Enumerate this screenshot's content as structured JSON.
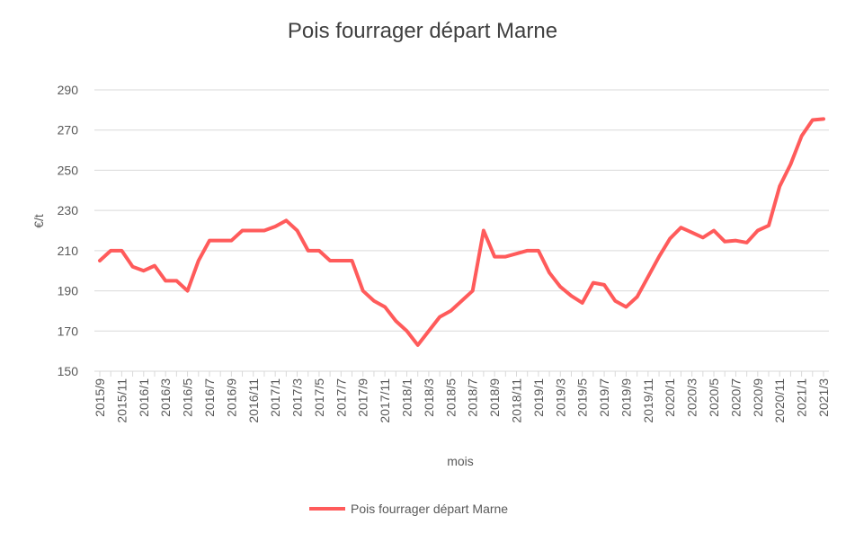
{
  "chart_data": {
    "type": "line",
    "title": "Pois fourrager départ Marne",
    "x_label": "mois",
    "y_label": "€/t",
    "categories": [
      "2015/9",
      null,
      "2015/11",
      null,
      "2016/1",
      null,
      "2016/3",
      null,
      "2016/5",
      null,
      "2016/7",
      null,
      "2016/9",
      null,
      "2016/11",
      null,
      "2017/1",
      null,
      "2017/3",
      null,
      "2017/5",
      null,
      "2017/7",
      null,
      "2017/9",
      null,
      "2017/11",
      null,
      "2018/1",
      null,
      "2018/3",
      null,
      "2018/5",
      null,
      "2018/7",
      null,
      "2018/9",
      null,
      "2018/11",
      null,
      "2019/1",
      null,
      "2019/3",
      null,
      "2019/5",
      null,
      "2019/7",
      null,
      "2019/9",
      null,
      "2019/11",
      null,
      "2020/1",
      null,
      "2020/3",
      null,
      "2020/5",
      null,
      "2020/7",
      null,
      "2020/9",
      null,
      "2020/11",
      null,
      "2021/1",
      null,
      "2021/3"
    ],
    "series": [
      {
        "name": "Pois fourrager départ Marne",
        "color": "#ff5b5b",
        "values": [
          205,
          210,
          210,
          202,
          200,
          202.5,
          195,
          195,
          190,
          205,
          215,
          215,
          215,
          220,
          220,
          220,
          222,
          225,
          220,
          210,
          210,
          205,
          205,
          205,
          190,
          185,
          182,
          175,
          170,
          163,
          170,
          177,
          180,
          185,
          190,
          220,
          207,
          207,
          208.5,
          210,
          210,
          199,
          192,
          187.5,
          184,
          194,
          193,
          185,
          182,
          187,
          197,
          207,
          216,
          221.5,
          219,
          216.5,
          220,
          214.5,
          215,
          214,
          220,
          222.5,
          242,
          253,
          267,
          275,
          275.5
        ]
      }
    ],
    "ylim": [
      150,
      290
    ],
    "yticks": [
      150,
      170,
      190,
      210,
      230,
      250,
      270,
      290
    ],
    "grid": true,
    "legend": "bottom"
  }
}
